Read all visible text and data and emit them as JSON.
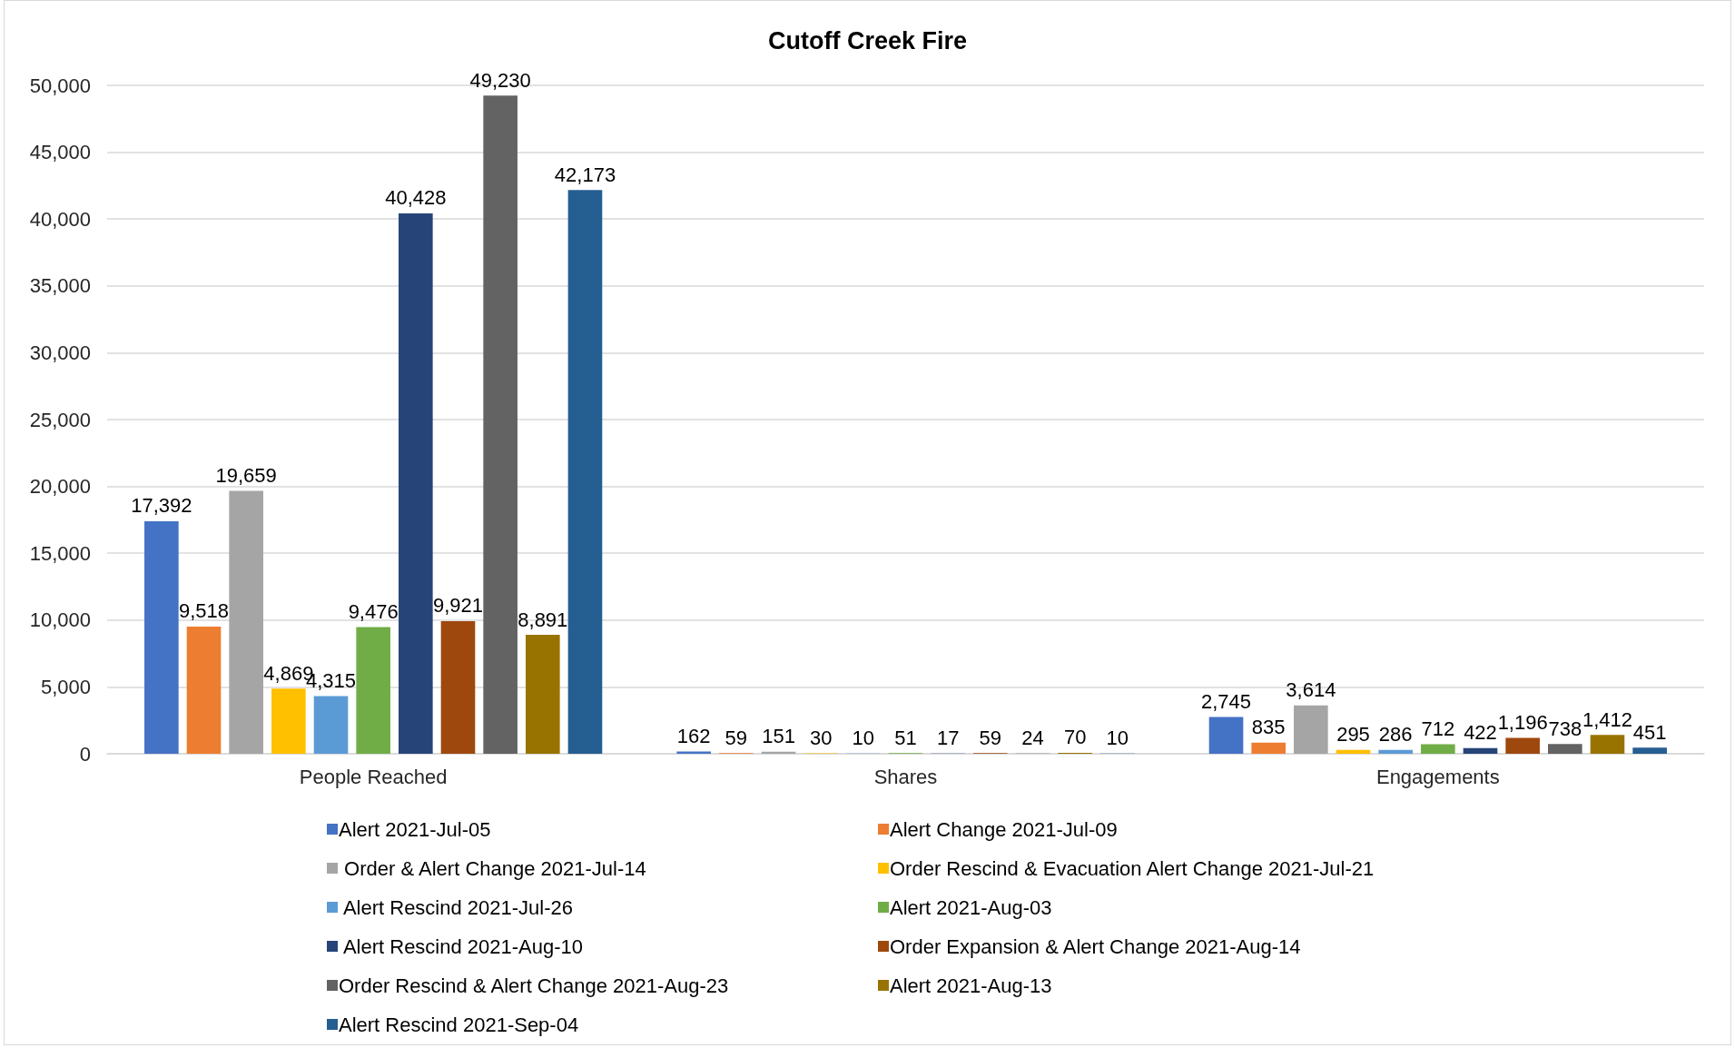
{
  "chart_data": {
    "type": "bar",
    "title": "Cutoff Creek Fire",
    "categories": [
      "People Reached",
      "Shares",
      "Engagements"
    ],
    "series": [
      {
        "name": "Alert 2021-Jul-05",
        "color": "#4472c4",
        "values": [
          17392,
          162,
          2745
        ],
        "value_labels": [
          "17,392",
          "162",
          "2,745"
        ]
      },
      {
        "name": "Alert Change 2021-Jul-09",
        "color": "#ed7d31",
        "values": [
          9518,
          59,
          835
        ],
        "value_labels": [
          "9,518",
          "59",
          "835"
        ]
      },
      {
        "name": " Order & Alert Change 2021-Jul-14",
        "color": "#a5a5a5",
        "values": [
          19659,
          151,
          3614
        ],
        "value_labels": [
          "19,659",
          "151",
          "3,614"
        ]
      },
      {
        "name": "Order Rescind & Evacuation Alert Change 2021-Jul-21",
        "color": "#ffc000",
        "values": [
          4869,
          30,
          295
        ],
        "value_labels": [
          "4,869",
          "30",
          "295"
        ]
      },
      {
        "name": " Alert Rescind 2021-Jul-26",
        "color": "#5b9bd5",
        "values": [
          4315,
          10,
          286
        ],
        "value_labels": [
          "4,315",
          "10",
          "286"
        ]
      },
      {
        "name": "Alert 2021-Aug-03",
        "color": "#70ad47",
        "values": [
          9476,
          51,
          712
        ],
        "value_labels": [
          "9,476",
          "51",
          "712"
        ]
      },
      {
        "name": " Alert Rescind 2021-Aug-10",
        "color": "#264478",
        "values": [
          40428,
          17,
          422
        ],
        "value_labels": [
          "40,428",
          "17",
          "422"
        ]
      },
      {
        "name": "Order Expansion & Alert Change 2021-Aug-14",
        "color": "#9e480e",
        "values": [
          9921,
          59,
          1196
        ],
        "value_labels": [
          "9,921",
          "59",
          "1,196"
        ]
      },
      {
        "name": "Order Rescind & Alert Change 2021-Aug-23",
        "color": "#636363",
        "values": [
          49230,
          24,
          738
        ],
        "value_labels": [
          "49,230",
          "24",
          "738"
        ]
      },
      {
        "name": "Alert 2021-Aug-13",
        "color": "#997300",
        "values": [
          8891,
          70,
          1412
        ],
        "value_labels": [
          "8,891",
          "70",
          "1,412"
        ]
      },
      {
        "name": "Alert Rescind 2021-Sep-04",
        "color": "#255e91",
        "values": [
          42173,
          10,
          451
        ],
        "value_labels": [
          "42,173",
          "10",
          "451"
        ]
      }
    ],
    "ylim": [
      0,
      50000
    ],
    "yticks": [
      0,
      {
        "value": 5000,
        "label": "5,000"
      },
      {
        "value": 10000,
        "label": "10,000"
      },
      {
        "value": 15000,
        "label": "15,000"
      },
      {
        "value": 20000,
        "label": "20,000"
      },
      {
        "value": 25000,
        "label": "25,000"
      },
      {
        "value": 30000,
        "label": "30,000"
      },
      {
        "value": 35000,
        "label": "35,000"
      },
      {
        "value": 40000,
        "label": "40,000"
      },
      {
        "value": 45000,
        "label": "45,000"
      },
      {
        "value": 50000,
        "label": "50,000"
      }
    ],
    "grid": "y",
    "legend": "bottom"
  }
}
